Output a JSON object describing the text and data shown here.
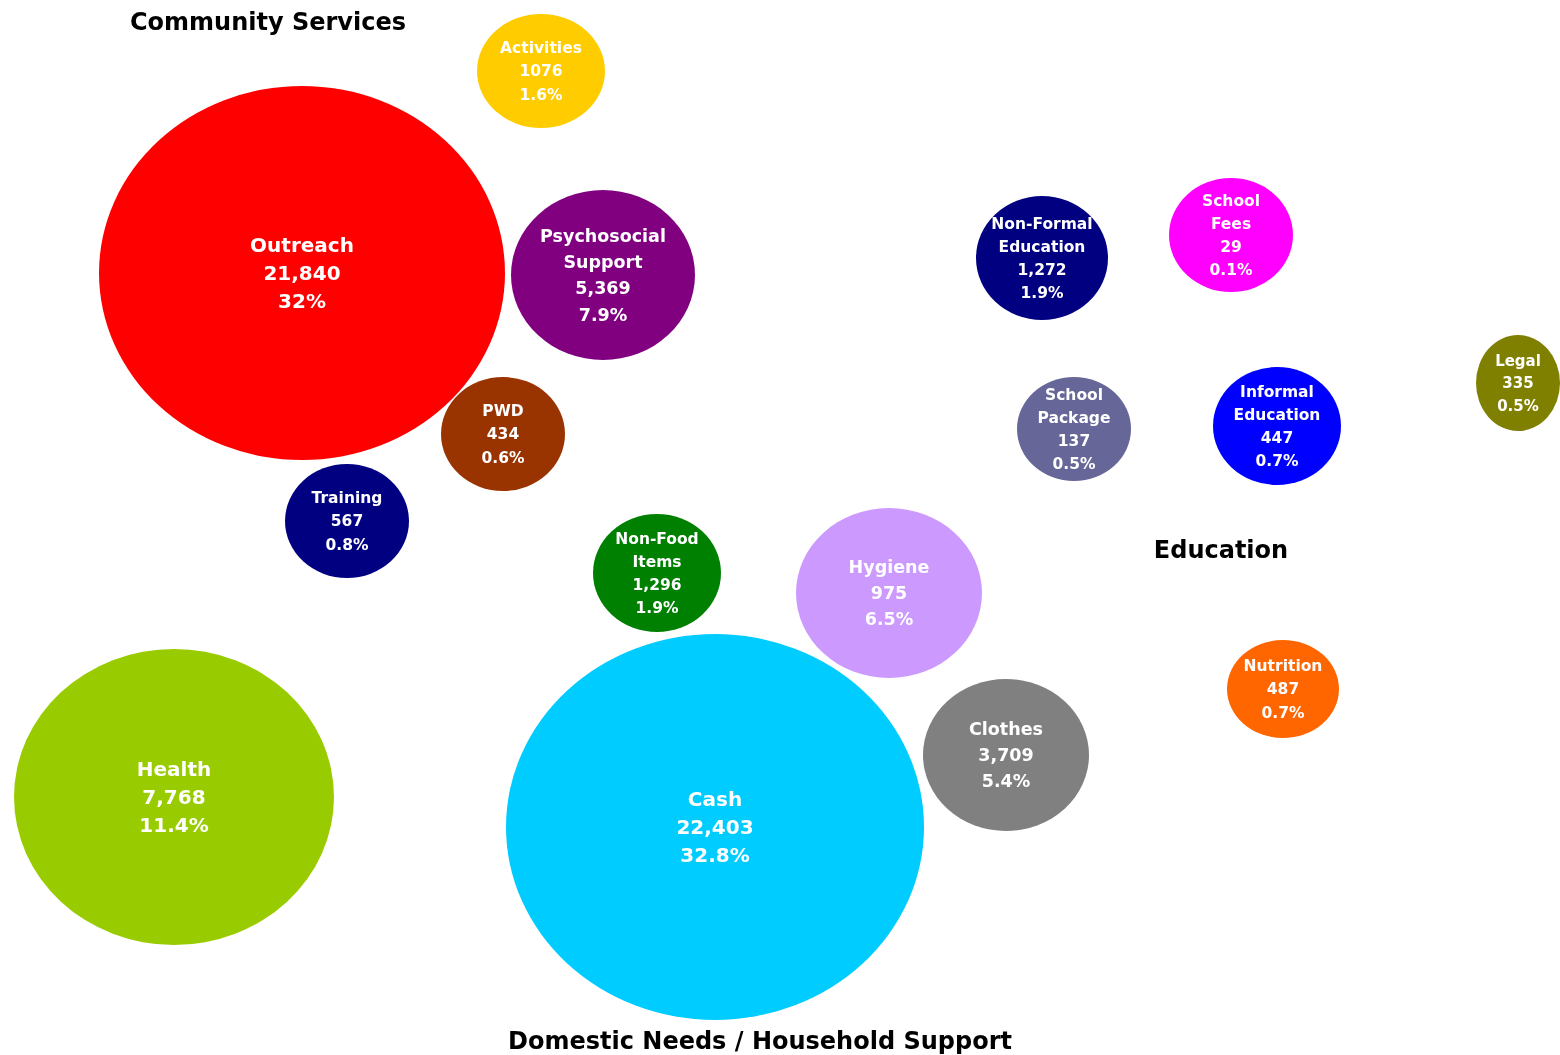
{
  "chart_data": {
    "type": "other",
    "categories": [
      "Activities",
      "Outreach",
      "Psychosocial Support",
      "PWD",
      "Training",
      "Non-Food Items",
      "Hygiene",
      "Cash",
      "Clothes",
      "Health",
      "Non-Formal Education",
      "School Fees",
      "School Package",
      "Informal Education",
      "Legal",
      "Nutrition"
    ],
    "series": [
      {
        "colors": [
          "#ffcc00",
          "#ff0000",
          "#800080",
          "#993300",
          "#000080",
          "#008000",
          "#cc99ff",
          "#00ccff",
          "#808080",
          "#99cc00",
          "#000080",
          "#ff00ff",
          "#666699",
          "#0000ff",
          "#808000",
          "#ff6600"
        ],
        "values": [
          1076,
          21840,
          5369,
          434,
          567,
          1296,
          975,
          22403,
          3709,
          7768,
          1272,
          29,
          137,
          447,
          335,
          487
        ],
        "value_labels": [
          "1076",
          "21,840",
          "5,369",
          "434",
          "567",
          "1,296",
          "975",
          "22,403",
          "3,709",
          "7,768",
          "1,272",
          "29",
          "137",
          "447",
          "335",
          "487"
        ]
      },
      {
        "color": "#ffffff",
        "values": [
          1.6,
          32,
          7.9,
          0.6,
          0.8,
          1.9,
          6.5,
          32.8,
          5.4,
          11.4,
          1.9,
          0.1,
          0.5,
          0.7,
          0.5,
          0.7
        ],
        "value_labels": [
          "1.6%",
          "32%",
          "7.9%",
          "0.6%",
          "0.8%",
          "1.9%",
          "6.5%",
          "32.8%",
          "5.4%",
          "11.4%",
          "1.9%",
          "0.1%",
          "0.5%",
          "0.7%",
          "0.5%",
          "0.7%"
        ]
      }
    ],
    "annotations": [
      "Community Services",
      "Education",
      "Domestic Needs / Household Support"
    ]
  }
}
